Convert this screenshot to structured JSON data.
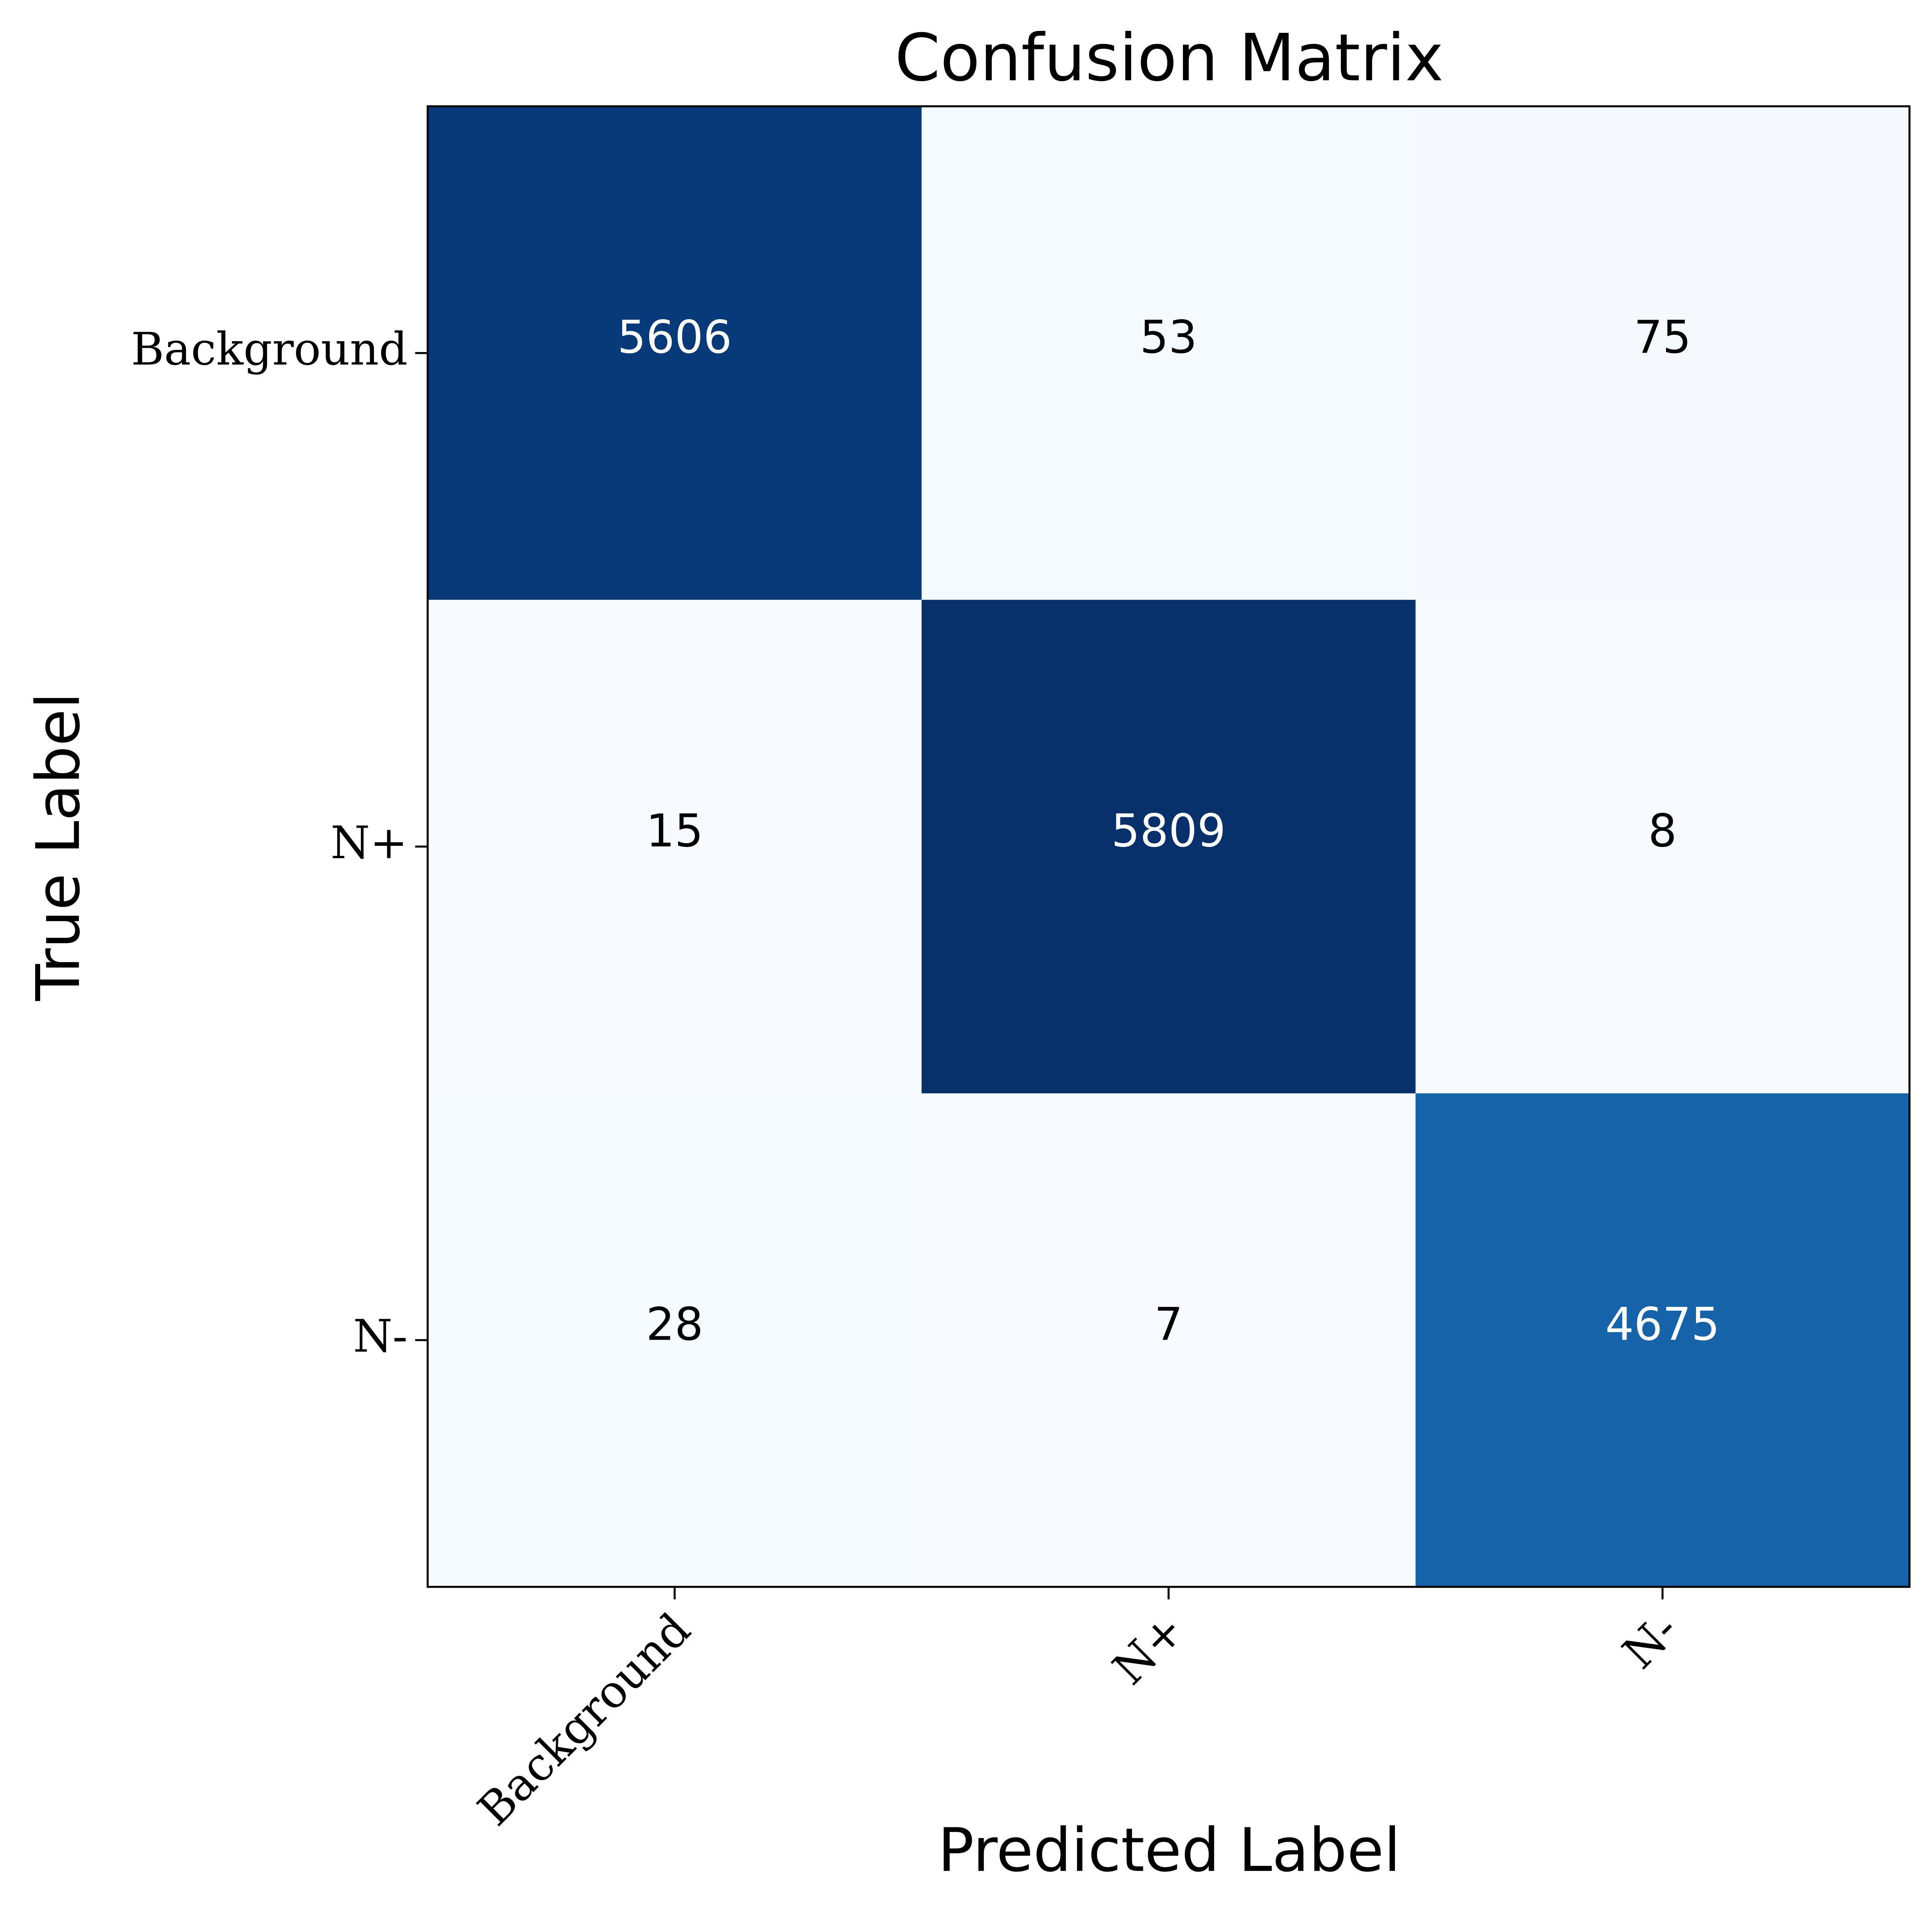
{
  "chart_data": {
    "type": "heatmap",
    "title": "Confusion Matrix",
    "x_label": "Predicted Label",
    "y_label": "True Label",
    "x_categories": [
      "Background",
      "N+",
      "N-"
    ],
    "y_categories": [
      "Background",
      "N+",
      "N-"
    ],
    "values": [
      [
        5606,
        53,
        75
      ],
      [
        15,
        5809,
        8
      ],
      [
        28,
        7,
        4675
      ]
    ],
    "colormap": "Blues"
  }
}
